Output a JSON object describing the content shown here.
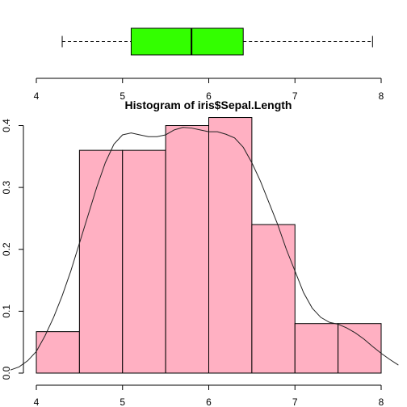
{
  "chart_data": [
    {
      "type": "boxplot",
      "orientation": "horizontal",
      "variable": "Sepal.Length",
      "stats": {
        "min": 4.3,
        "q1": 5.1,
        "median": 5.8,
        "q3": 6.4,
        "max": 7.9
      },
      "box_color": "#33ff00",
      "whisker_style": "dashed",
      "xlim": [
        4,
        8
      ],
      "x_ticks": [
        4,
        5,
        6,
        7,
        8
      ],
      "x_tick_labels": [
        "4",
        "5",
        "6",
        "7",
        "8"
      ]
    },
    {
      "type": "histogram",
      "title": "Histogram of iris$Sepal.Length",
      "xlabel": "",
      "ylabel": "",
      "bin_edges": [
        4.0,
        4.5,
        5.0,
        5.5,
        6.0,
        6.5,
        7.0,
        7.5,
        8.0
      ],
      "density": [
        0.067,
        0.36,
        0.36,
        0.4,
        0.413,
        0.24,
        0.08,
        0.08
      ],
      "bar_color": "#ffb0c2",
      "xlim": [
        4,
        8
      ],
      "ylim": [
        0,
        0.42
      ],
      "x_ticks": [
        4,
        5,
        6,
        7,
        8
      ],
      "x_tick_labels": [
        "4",
        "5",
        "6",
        "7",
        "8"
      ],
      "y_ticks": [
        0.0,
        0.1,
        0.2,
        0.3,
        0.4
      ],
      "y_tick_labels": [
        "0.0",
        "0.1",
        "0.2",
        "0.3",
        "0.4"
      ],
      "density_curve": {
        "x": [
          3.7,
          3.8,
          3.9,
          4.0,
          4.1,
          4.2,
          4.3,
          4.4,
          4.5,
          4.6,
          4.7,
          4.8,
          4.9,
          5.0,
          5.1,
          5.2,
          5.3,
          5.4,
          5.5,
          5.6,
          5.7,
          5.8,
          5.9,
          6.0,
          6.1,
          6.2,
          6.3,
          6.4,
          6.5,
          6.6,
          6.7,
          6.8,
          6.9,
          7.0,
          7.1,
          7.2,
          7.3,
          7.4,
          7.5,
          7.6,
          7.7,
          7.8,
          7.9,
          8.0,
          8.1,
          8.2
        ],
        "y": [
          0.005,
          0.01,
          0.02,
          0.035,
          0.06,
          0.09,
          0.125,
          0.165,
          0.21,
          0.255,
          0.3,
          0.34,
          0.37,
          0.385,
          0.388,
          0.385,
          0.382,
          0.382,
          0.385,
          0.393,
          0.397,
          0.396,
          0.393,
          0.39,
          0.39,
          0.386,
          0.38,
          0.365,
          0.34,
          0.31,
          0.275,
          0.24,
          0.2,
          0.165,
          0.13,
          0.105,
          0.09,
          0.082,
          0.079,
          0.073,
          0.065,
          0.055,
          0.043,
          0.032,
          0.022,
          0.013
        ]
      }
    }
  ]
}
